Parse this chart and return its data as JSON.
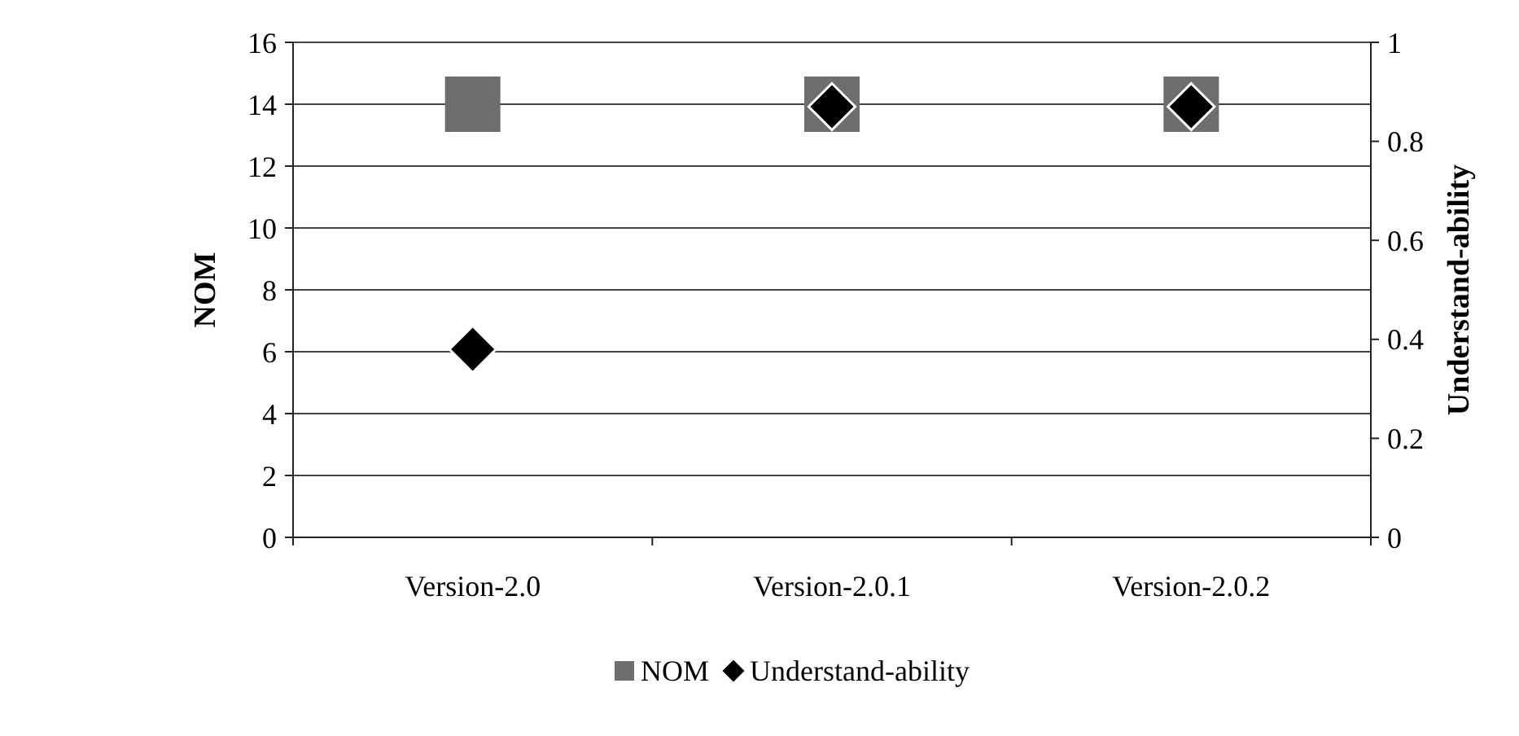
{
  "chart_data": {
    "type": "scatter",
    "categories": [
      "Version-2.0",
      "Version-2.0.1",
      "Version-2.0.2"
    ],
    "series": [
      {
        "name": "NOM",
        "color": "#6e6e6e",
        "values": [
          14,
          14,
          14
        ],
        "marker": "square"
      },
      {
        "name": "Understand-ability",
        "color": "#000000",
        "values": [
          0.38,
          0.87,
          0.87
        ],
        "axis": "y2",
        "marker": "diamond"
      }
    ],
    "ylabel": "NOM",
    "y2label": "Understand-ability",
    "ylim": [
      0,
      16
    ],
    "yticks": [
      0,
      2,
      4,
      6,
      8,
      10,
      12,
      14,
      16
    ],
    "y2lim": [
      0,
      1
    ],
    "y2ticks": [
      0,
      0.2,
      0.4,
      0.6,
      0.8,
      1
    ],
    "grid": "y",
    "legend": "bottom"
  }
}
